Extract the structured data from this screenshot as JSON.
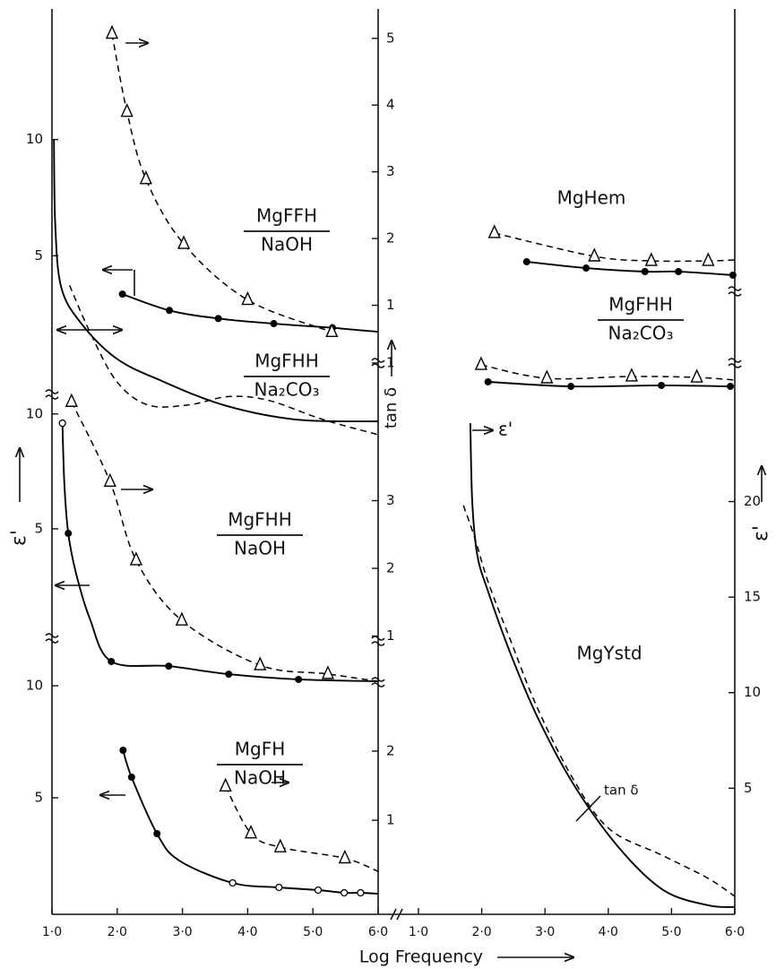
{
  "figure": {
    "x_label": "Log Frequency",
    "y_label_left": "ε'",
    "y_label_middle": "tan δ",
    "y_label_right": "ε'"
  },
  "chart_data": [
    {
      "type": "line",
      "label": [
        "MgFFH",
        "NaOH"
      ],
      "xlim": [
        1,
        6
      ],
      "ylim": [
        0,
        15.5
      ],
      "y2lim": [
        0,
        5.4
      ],
      "yticks": [
        5,
        10
      ],
      "y2ticks": [
        1,
        2,
        3,
        4,
        5
      ],
      "series": [
        {
          "color": "#000",
          "dash": false,
          "x": [
            2.08,
            2.8,
            3.55,
            4.4,
            5.3,
            6.0
          ],
          "values": [
            3.35,
            2.65,
            2.3,
            2.08,
            1.9,
            1.73
          ],
          "markers": [
            "dot",
            "dot",
            "dot",
            "dot",
            "dot",
            null
          ]
        },
        {
          "color": "#000",
          "dash": true,
          "axis": "y2",
          "x": [
            1.92,
            2.15,
            2.44,
            3.02,
            4.0,
            5.29
          ],
          "values": [
            5.07,
            3.9,
            2.89,
            1.92,
            1.08,
            0.6
          ],
          "markers": [
            "triangle",
            "triangle",
            "triangle",
            "triangle",
            "triangle",
            "triangle"
          ]
        }
      ]
    },
    {
      "type": "line",
      "label": [
        "MgFHH",
        "Na₂CO₃"
      ],
      "xlim": [
        1,
        6
      ],
      "ylim": [
        0,
        13
      ],
      "y2lim": [
        0,
        4
      ],
      "y2ticks": [
        1
      ],
      "series": [
        {
          "color": "#000",
          "dash": false,
          "x": [
            1.03,
            1.05,
            1.14,
            1.44,
            1.99,
            2.68,
            3.64,
            4.74,
            6.0
          ],
          "values": [
            12.8,
            9.18,
            6.5,
            4.97,
            3.44,
            2.49,
            1.45,
            0.84,
            0.76
          ]
        },
        {
          "color": "#000",
          "dash": true,
          "axis": "y2",
          "x": [
            1.27,
            1.58,
            1.99,
            2.47,
            3.09,
            3.71,
            4.32,
            5.15,
            6.0
          ],
          "values": [
            2.02,
            1.41,
            0.76,
            0.45,
            0.45,
            0.56,
            0.51,
            0.26,
            0.06
          ]
        }
      ]
    },
    {
      "type": "line",
      "label": [
        "MgFHH",
        "NaOH"
      ],
      "xlim": [
        1,
        6
      ],
      "ylim": [
        -2.03,
        10.5
      ],
      "y2lim": [
        0.2,
        4.45
      ],
      "yticks": [
        5,
        10
      ],
      "y2ticks": [
        1,
        2,
        3
      ],
      "series": [
        {
          "color": "#000",
          "dash": false,
          "x": [
            1.16,
            1.19,
            1.25,
            1.37,
            1.58,
            1.91,
            2.79,
            3.71,
            4.78,
            6.0
          ],
          "values": [
            9.6,
            6.95,
            4.8,
            3.05,
            1.09,
            -0.78,
            -0.98,
            -1.33,
            -1.56,
            -1.64
          ],
          "markers": [
            "circle",
            null,
            "dot",
            null,
            null,
            "dot",
            "dot",
            "dot",
            "dot",
            null
          ]
        },
        {
          "color": "#000",
          "dash": true,
          "axis": "y2",
          "x": [
            1.3,
            1.89,
            2.29,
            2.99,
            4.19,
            5.23,
            6.0
          ],
          "values": [
            4.46,
            3.28,
            2.12,
            1.23,
            0.57,
            0.44,
            0.33
          ],
          "markers": [
            "triangle",
            "triangle",
            "triangle",
            "triangle",
            "triangle",
            "triangle",
            null
          ]
        }
      ]
    },
    {
      "type": "line",
      "label": [
        "MgFH",
        "NaOH"
      ],
      "xlim": [
        1,
        6
      ],
      "ylim": [
        -0.2,
        10.2
      ],
      "y2lim": [
        -0.36,
        3.01
      ],
      "yticks": [
        5,
        10
      ],
      "y2ticks": [
        1,
        2
      ],
      "xticks": [
        {
          "value": 1,
          "label": "1·0"
        },
        {
          "value": 2,
          "label": "2·0"
        },
        {
          "value": 3,
          "label": "3·0"
        },
        {
          "value": 4,
          "label": "4·0"
        },
        {
          "value": 5,
          "label": "5·0"
        },
        {
          "value": 6,
          "label": "6·0"
        }
      ],
      "series": [
        {
          "color": "#000",
          "dash": false,
          "x": [
            2.09,
            2.22,
            2.61,
            2.95,
            3.77,
            4.48,
            5.08,
            5.48,
            5.73,
            6.0
          ],
          "values": [
            7.12,
            5.92,
            3.4,
            2.2,
            1.2,
            1.0,
            0.88,
            0.76,
            0.76,
            0.72
          ],
          "markers": [
            "dot",
            "dot",
            "dot",
            null,
            "circle",
            "circle",
            "circle",
            "circle",
            "circle",
            null
          ]
        },
        {
          "color": "#000",
          "dash": true,
          "axis": "y2",
          "x": [
            3.66,
            4.05,
            4.5,
            5.49,
            6.0
          ],
          "values": [
            1.49,
            0.81,
            0.61,
            0.45,
            0.26
          ],
          "markers": [
            "triangle",
            "triangle",
            "triangle",
            "triangle",
            null
          ]
        }
      ]
    },
    {
      "type": "line",
      "label": "MgHem",
      "xlim": [
        1,
        6
      ],
      "ylim": [
        0,
        10
      ],
      "series": [
        {
          "color": "#000",
          "dash": true,
          "x": [
            2.2,
            3.78,
            4.68,
            5.58,
            6.0
          ],
          "values": [
            7.78,
            4.89,
            4.33,
            4.33,
            4.44
          ],
          "markers": [
            "triangle",
            "triangle",
            "triangle",
            "triangle",
            null
          ]
        },
        {
          "color": "#000",
          "dash": false,
          "x": [
            2.71,
            3.65,
            4.58,
            5.11,
            5.97
          ],
          "values": [
            4.22,
            3.44,
            3.0,
            3.0,
            2.56
          ],
          "markers": [
            "dot",
            "dot",
            "dot",
            "dot",
            "dot"
          ]
        }
      ]
    },
    {
      "type": "line",
      "label": [
        "MgFHH",
        "Na₂CO₃"
      ],
      "xlim": [
        1,
        6
      ],
      "ylim": [
        0,
        10
      ],
      "series": [
        {
          "color": "#000",
          "dash": true,
          "x": [
            1.99,
            3.03,
            4.37,
            5.4,
            6.0
          ],
          "values": [
            6.14,
            4.0,
            4.29,
            4.14,
            3.71
          ],
          "markers": [
            "triangle",
            "triangle",
            "triangle",
            "triangle",
            null
          ]
        },
        {
          "color": "#000",
          "dash": false,
          "x": [
            2.1,
            3.41,
            4.84,
            5.93
          ],
          "values": [
            3.43,
            2.71,
            2.86,
            2.71
          ],
          "markers": [
            "dot",
            "dot",
            "dot",
            "dot"
          ]
        }
      ]
    },
    {
      "type": "line",
      "label": "MgYstd",
      "xlim": [
        1,
        6
      ],
      "ylim": [
        -1.6,
        24.2
      ],
      "yticks": [
        5,
        10,
        15,
        20
      ],
      "y_axis_side": "right",
      "xticks": [
        {
          "value": 1,
          "label": "1·0"
        },
        {
          "value": 2,
          "label": "2·0"
        },
        {
          "value": 3,
          "label": "3·0"
        },
        {
          "value": 4,
          "label": "4·0"
        },
        {
          "value": 5,
          "label": "5·0"
        },
        {
          "value": 6,
          "label": "6·0"
        }
      ],
      "annotations": [
        "ε'",
        "tan δ"
      ],
      "series": [
        {
          "color": "#000",
          "dash": false,
          "x": [
            1.82,
            1.85,
            1.93,
            2.1,
            2.46,
            2.88,
            3.45,
            4.16,
            4.87,
            5.58,
            6.0
          ],
          "values": [
            24.1,
            20,
            17.2,
            15.3,
            12.0,
            8.73,
            5.21,
            1.92,
            -0.33,
            -1.13,
            -1.22
          ]
        },
        {
          "color": "#000",
          "dash": true,
          "x": [
            1.71,
            1.89,
            2.1,
            2.46,
            2.88,
            3.45,
            4.02,
            4.87,
            5.58,
            6.0
          ],
          "values": [
            19.8,
            18.1,
            15.8,
            12.7,
            9.2,
            5.45,
            2.86,
            1.46,
            0.28,
            -0.66
          ]
        }
      ]
    }
  ]
}
